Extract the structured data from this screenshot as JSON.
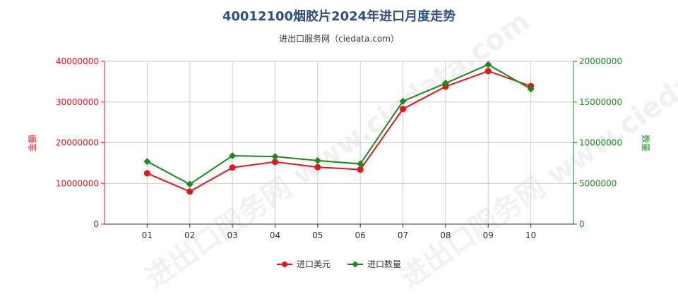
{
  "title": "40012100烟胶片2024年进口月度走势",
  "subtitle": "进出口服务网（ciedata.com）",
  "watermark": "进出口服务网 www.ciedata.com",
  "colors": {
    "amount": "#e8141b",
    "quantity": "#1a8a1a",
    "grid": "#cccccc",
    "axis": "#333333"
  },
  "chart_data": {
    "type": "line",
    "categories": [
      "01",
      "02",
      "03",
      "04",
      "05",
      "06",
      "07",
      "08",
      "09",
      "10"
    ],
    "y_left": {
      "label": "金额",
      "min": 0,
      "max": 40000000,
      "ticks": [
        "0",
        "10000000",
        "20000000",
        "30000000",
        "40000000"
      ]
    },
    "y_right": {
      "label": "数量",
      "min": 0,
      "max": 20000000,
      "ticks": [
        "0",
        "5000000",
        "10000000",
        "15000000",
        "20000000"
      ]
    },
    "series": [
      {
        "name": "进口美元",
        "axis": "left",
        "marker": "circle",
        "values": [
          12500000,
          8000000,
          13900000,
          15300000,
          14000000,
          13400000,
          28300000,
          33800000,
          37600000,
          33900000
        ]
      },
      {
        "name": "进口数量",
        "axis": "right",
        "marker": "diamond",
        "values": [
          7700000,
          4900000,
          8400000,
          8300000,
          7800000,
          7400000,
          15100000,
          17300000,
          19600000,
          16600000
        ]
      }
    ],
    "grid": true,
    "legend": "bottom-center"
  }
}
